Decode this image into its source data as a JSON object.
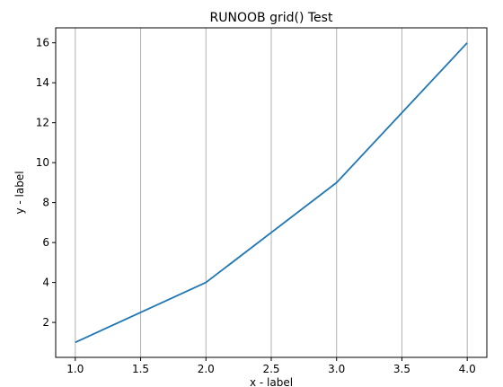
{
  "chart_data": {
    "type": "line",
    "title": "RUNOOB grid() Test",
    "xlabel": "x - label",
    "ylabel": "y - label",
    "xlim": [
      0.85,
      4.15
    ],
    "ylim": [
      0.25,
      16.75
    ],
    "grid": {
      "axis": "x",
      "color": "#b0b0b0"
    },
    "x_ticks": [
      1.0,
      1.5,
      2.0,
      2.5,
      3.0,
      3.5,
      4.0
    ],
    "x_tick_labels": [
      "1.0",
      "1.5",
      "2.0",
      "2.5",
      "3.0",
      "3.5",
      "4.0"
    ],
    "y_ticks": [
      2,
      4,
      6,
      8,
      10,
      12,
      14,
      16
    ],
    "y_tick_labels": [
      "2",
      "4",
      "6",
      "8",
      "10",
      "12",
      "14",
      "16"
    ],
    "series": [
      {
        "color": "#1f77b4",
        "x": [
          1,
          2,
          3,
          4
        ],
        "y": [
          1,
          4,
          9,
          16
        ]
      }
    ]
  }
}
